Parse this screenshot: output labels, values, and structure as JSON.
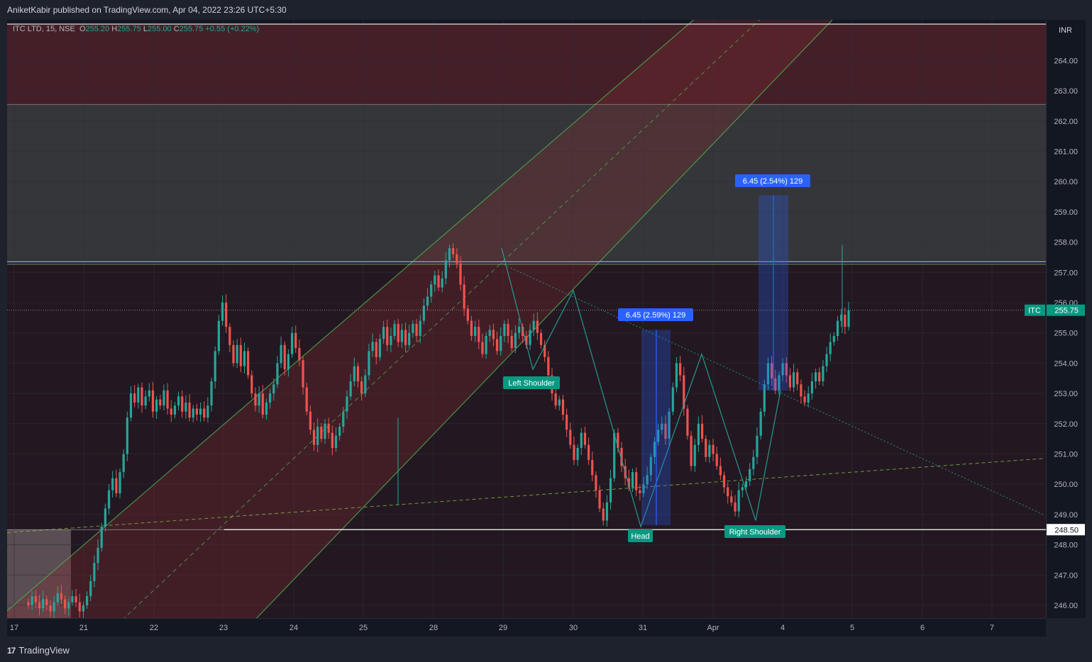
{
  "header": {
    "published_text": "AniketKabir published on TradingView.com, Apr 04, 2022 23:26 UTC+5:30"
  },
  "legend": {
    "symbol": "ITC LTD, 15, NSE",
    "open_label": "O",
    "open": "255.20",
    "high_label": "H",
    "high": "255.75",
    "low_label": "L",
    "low": "255.00",
    "close_label": "C",
    "close": "255.75",
    "change": "+0.55 (+0.22%)"
  },
  "currency": "INR",
  "footer": {
    "brand": "TradingView",
    "brand_mark": "17"
  },
  "colors": {
    "background": "#131722",
    "up": "#26a69a",
    "down": "#ef5350",
    "channel": "#4caf50",
    "measure": "#2962ff",
    "label_green": "#089981",
    "zone_red": "#5c2329",
    "zone_grey": "#3a3a3d"
  },
  "chart_data": {
    "type": "candlestick",
    "symbol": "ITC LTD",
    "interval": "15",
    "exchange": "NSE",
    "ylim": [
      245.6,
      265.2
    ],
    "y_ticks": [
      246.0,
      247.0,
      248.0,
      249.0,
      250.0,
      251.0,
      252.0,
      253.0,
      254.0,
      255.0,
      256.0,
      257.0,
      258.0,
      259.0,
      260.0,
      261.0,
      262.0,
      263.0,
      264.0
    ],
    "x_ticks": [
      "17",
      "21",
      "22",
      "23",
      "24",
      "25",
      "28",
      "29",
      "30",
      "31",
      "Apr",
      "4",
      "5",
      "6",
      "7"
    ],
    "current_price": {
      "label": "ITC",
      "value": "255.75"
    },
    "horizontal_line": {
      "value": "248.50"
    },
    "annotations": {
      "left_shoulder": "Left Shoulder",
      "head": "Head",
      "right_shoulder": "Right Shoulder",
      "measure_1": "6.45 (2.59%) 129",
      "measure_2": "6.45 (2.54%) 129"
    },
    "closes": [
      246.0,
      246.3,
      246.1,
      245.9,
      246.2,
      246.0,
      245.8,
      246.1,
      246.4,
      246.2,
      245.9,
      246.1,
      246.3,
      246.1,
      245.8,
      246.0,
      246.3,
      246.8,
      247.4,
      247.9,
      248.6,
      249.2,
      249.8,
      250.2,
      249.7,
      250.4,
      251.0,
      252.2,
      253.0,
      252.7,
      253.2,
      252.6,
      252.9,
      253.1,
      252.4,
      252.8,
      252.6,
      253.1,
      252.5,
      252.3,
      252.6,
      252.9,
      252.4,
      252.7,
      252.2,
      252.5,
      252.3,
      252.5,
      252.2,
      252.6,
      253.4,
      254.4,
      255.4,
      256.0,
      255.2,
      254.6,
      254.0,
      254.6,
      253.9,
      254.4,
      253.6,
      253.0,
      252.6,
      253.0,
      252.3,
      252.7,
      253.0,
      253.3,
      254.0,
      254.6,
      253.8,
      254.3,
      255.0,
      254.5,
      254.1,
      253.2,
      252.4,
      251.8,
      251.3,
      251.9,
      251.5,
      252.0,
      251.7,
      251.2,
      251.6,
      251.9,
      252.4,
      252.9,
      253.4,
      253.9,
      253.4,
      253.0,
      253.6,
      254.4,
      254.7,
      254.2,
      254.8,
      255.2,
      254.6,
      254.9,
      255.3,
      254.7,
      255.1,
      254.6,
      255.0,
      255.3,
      254.9,
      255.4,
      255.9,
      256.2,
      256.6,
      256.9,
      256.5,
      256.8,
      257.4,
      257.8,
      257.6,
      257.3,
      256.6,
      255.8,
      255.4,
      254.9,
      255.2,
      254.7,
      254.3,
      254.9,
      255.1,
      254.8,
      254.4,
      254.9,
      255.3,
      254.9,
      254.5,
      255.0,
      255.2,
      254.9,
      254.6,
      255.1,
      255.4,
      255.0,
      254.6,
      254.2,
      253.6,
      253.0,
      252.6,
      252.8,
      252.3,
      251.8,
      251.3,
      250.8,
      251.2,
      251.7,
      251.3,
      250.8,
      250.3,
      249.8,
      249.2,
      248.8,
      249.4,
      250.2,
      251.7,
      251.2,
      250.6,
      250.2,
      249.9,
      250.4,
      249.8,
      249.7,
      250.0,
      250.3,
      250.9,
      251.4,
      251.8,
      252.0,
      251.5,
      252.4,
      253.2,
      254.0,
      253.6,
      252.5,
      251.6,
      250.6,
      251.3,
      252.0,
      251.5,
      250.9,
      251.3,
      251.0,
      250.6,
      250.3,
      249.9,
      249.6,
      249.4,
      249.1,
      249.8,
      249.9,
      250.1,
      250.5,
      250.9,
      251.6,
      252.4,
      253.3,
      254.0,
      253.5,
      253.1,
      253.6,
      254.0,
      253.6,
      253.2,
      253.7,
      253.3,
      252.9,
      252.7,
      253.0,
      253.4,
      253.7,
      253.4,
      253.9,
      254.3,
      254.7,
      254.9,
      255.4,
      255.6,
      255.2,
      255.75
    ]
  }
}
